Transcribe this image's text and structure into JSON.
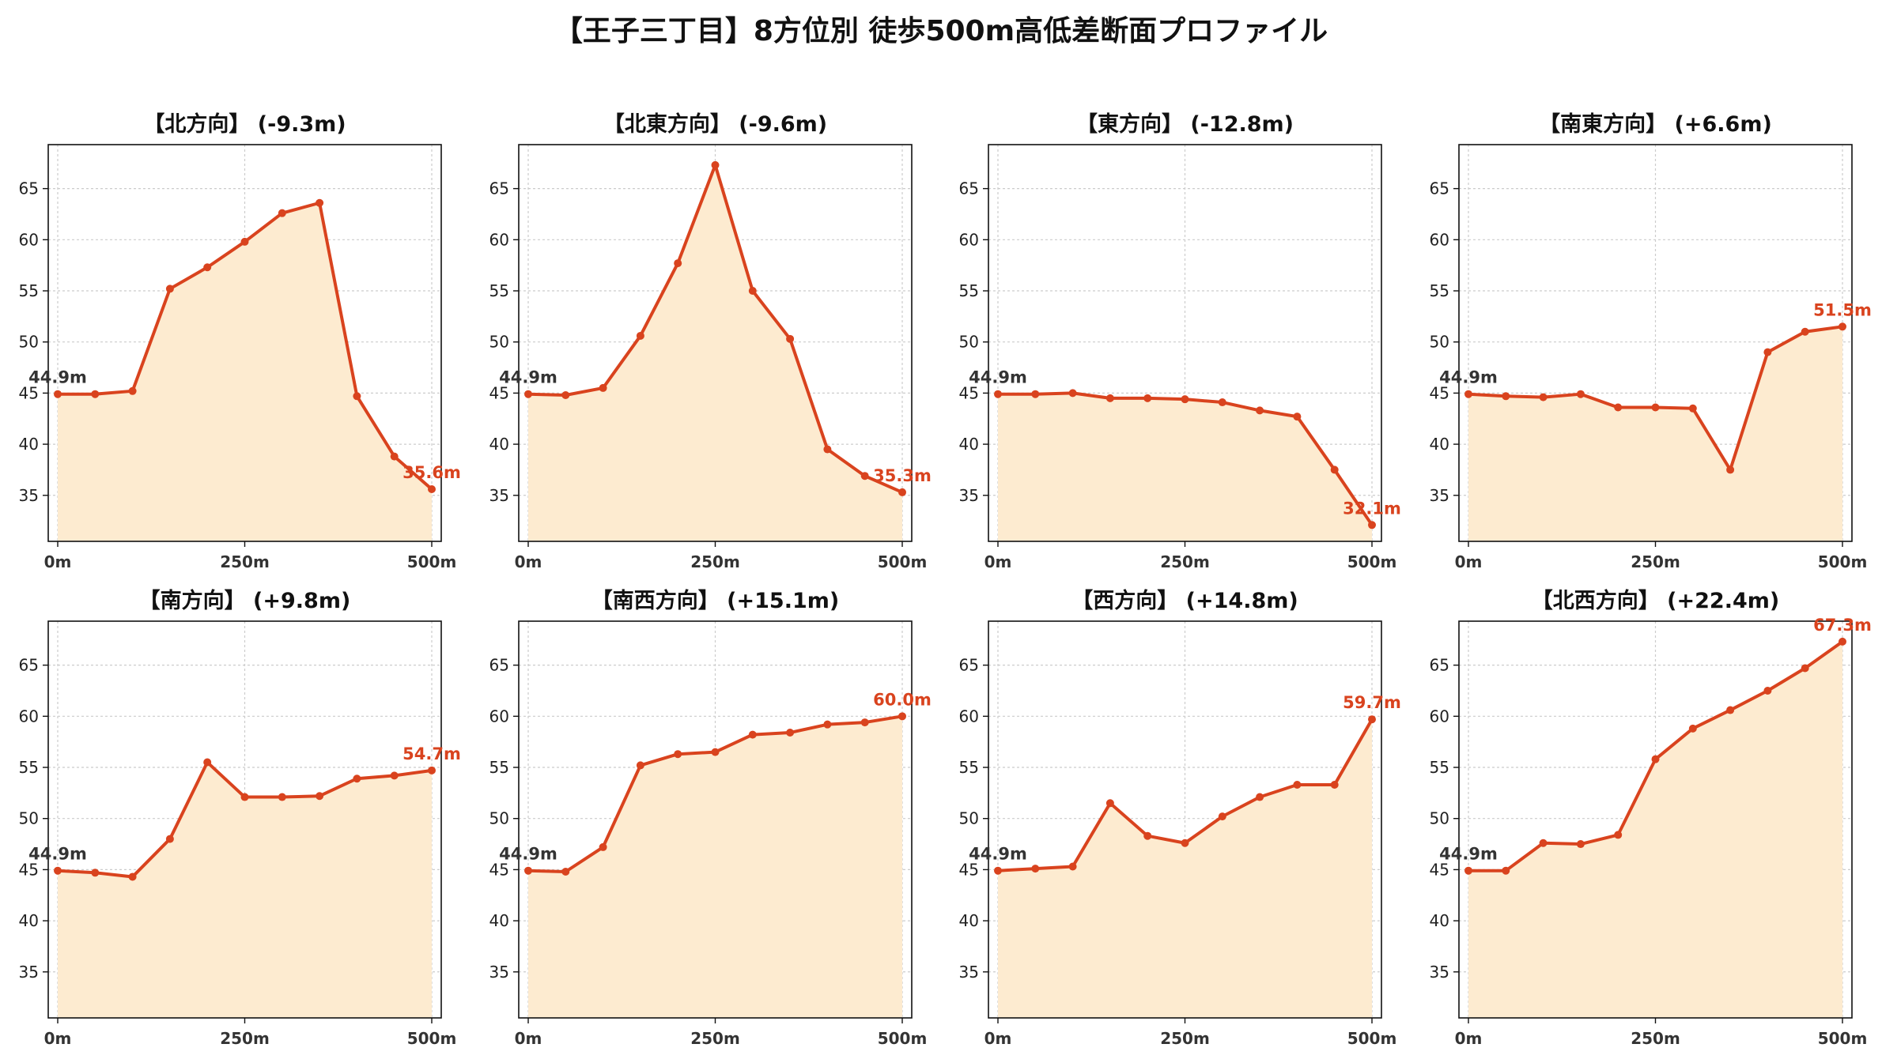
{
  "title": "【王子三丁目】8方位別 徒歩500m高低差断面プロファイル",
  "colors": {
    "line": "#d9431e",
    "fill": "#fdebd0",
    "grid": "#cccccc",
    "start_label": "#333333"
  },
  "chart_data": [
    {
      "type": "area",
      "title": "【北方向】 (-9.3m)",
      "x": [
        0,
        50,
        100,
        150,
        200,
        250,
        300,
        350,
        400,
        450,
        500
      ],
      "values": [
        44.9,
        44.9,
        45.2,
        55.2,
        57.3,
        59.8,
        62.6,
        63.6,
        44.7,
        38.8,
        35.6
      ],
      "xticks": [
        "0m",
        "250m",
        "500m"
      ],
      "xtick_values": [
        0,
        250,
        500
      ],
      "ylim": [
        30.5,
        69.3
      ],
      "yticks": [
        35,
        40,
        45,
        50,
        55,
        60,
        65
      ],
      "start_label": "44.9m",
      "end_label": "35.6m",
      "grid": true
    },
    {
      "type": "area",
      "title": "【北東方向】 (-9.6m)",
      "x": [
        0,
        50,
        100,
        150,
        200,
        250,
        300,
        350,
        400,
        450,
        500
      ],
      "values": [
        44.9,
        44.8,
        45.5,
        50.6,
        57.7,
        67.3,
        55.0,
        50.3,
        39.5,
        36.9,
        35.3
      ],
      "xticks": [
        "0m",
        "250m",
        "500m"
      ],
      "xtick_values": [
        0,
        250,
        500
      ],
      "ylim": [
        30.5,
        69.3
      ],
      "yticks": [
        35,
        40,
        45,
        50,
        55,
        60,
        65
      ],
      "start_label": "44.9m",
      "end_label": "35.3m",
      "grid": true
    },
    {
      "type": "area",
      "title": "【東方向】 (-12.8m)",
      "x": [
        0,
        50,
        100,
        150,
        200,
        250,
        300,
        350,
        400,
        450,
        500
      ],
      "values": [
        44.9,
        44.9,
        45.0,
        44.5,
        44.5,
        44.4,
        44.1,
        43.3,
        42.7,
        37.5,
        32.1
      ],
      "xticks": [
        "0m",
        "250m",
        "500m"
      ],
      "xtick_values": [
        0,
        250,
        500
      ],
      "ylim": [
        30.5,
        69.3
      ],
      "yticks": [
        35,
        40,
        45,
        50,
        55,
        60,
        65
      ],
      "start_label": "44.9m",
      "end_label": "32.1m",
      "grid": true
    },
    {
      "type": "area",
      "title": "【南東方向】 (+6.6m)",
      "x": [
        0,
        50,
        100,
        150,
        200,
        250,
        300,
        350,
        400,
        450,
        500
      ],
      "values": [
        44.9,
        44.7,
        44.6,
        44.9,
        43.6,
        43.6,
        43.5,
        37.5,
        49.0,
        51.0,
        51.5
      ],
      "xticks": [
        "0m",
        "250m",
        "500m"
      ],
      "xtick_values": [
        0,
        250,
        500
      ],
      "ylim": [
        30.5,
        69.3
      ],
      "yticks": [
        35,
        40,
        45,
        50,
        55,
        60,
        65
      ],
      "start_label": "44.9m",
      "end_label": "51.5m",
      "grid": true
    },
    {
      "type": "area",
      "title": "【南方向】 (+9.8m)",
      "x": [
        0,
        50,
        100,
        150,
        200,
        250,
        300,
        350,
        400,
        450,
        500
      ],
      "values": [
        44.9,
        44.7,
        44.3,
        48.0,
        55.5,
        52.1,
        52.1,
        52.2,
        53.9,
        54.2,
        54.7
      ],
      "xticks": [
        "0m",
        "250m",
        "500m"
      ],
      "xtick_values": [
        0,
        250,
        500
      ],
      "ylim": [
        30.5,
        69.3
      ],
      "yticks": [
        35,
        40,
        45,
        50,
        55,
        60,
        65
      ],
      "start_label": "44.9m",
      "end_label": "54.7m",
      "grid": true
    },
    {
      "type": "area",
      "title": "【南西方向】 (+15.1m)",
      "x": [
        0,
        50,
        100,
        150,
        200,
        250,
        300,
        350,
        400,
        450,
        500
      ],
      "values": [
        44.9,
        44.8,
        47.2,
        55.2,
        56.3,
        56.5,
        58.2,
        58.4,
        59.2,
        59.4,
        60.0
      ],
      "xticks": [
        "0m",
        "250m",
        "500m"
      ],
      "xtick_values": [
        0,
        250,
        500
      ],
      "ylim": [
        30.5,
        69.3
      ],
      "yticks": [
        35,
        40,
        45,
        50,
        55,
        60,
        65
      ],
      "start_label": "44.9m",
      "end_label": "60.0m",
      "grid": true
    },
    {
      "type": "area",
      "title": "【西方向】 (+14.8m)",
      "x": [
        0,
        50,
        100,
        150,
        200,
        250,
        300,
        350,
        400,
        450,
        500
      ],
      "values": [
        44.9,
        45.1,
        45.3,
        51.5,
        48.3,
        47.6,
        50.2,
        52.1,
        53.3,
        53.3,
        59.7
      ],
      "xticks": [
        "0m",
        "250m",
        "500m"
      ],
      "xtick_values": [
        0,
        250,
        500
      ],
      "ylim": [
        30.5,
        69.3
      ],
      "yticks": [
        35,
        40,
        45,
        50,
        55,
        60,
        65
      ],
      "start_label": "44.9m",
      "end_label": "59.7m",
      "grid": true
    },
    {
      "type": "area",
      "title": "【北西方向】 (+22.4m)",
      "x": [
        0,
        50,
        100,
        150,
        200,
        250,
        300,
        350,
        400,
        450,
        500
      ],
      "values": [
        44.9,
        44.9,
        47.6,
        47.5,
        48.4,
        55.8,
        58.8,
        60.6,
        62.5,
        64.7,
        67.3
      ],
      "xticks": [
        "0m",
        "250m",
        "500m"
      ],
      "xtick_values": [
        0,
        250,
        500
      ],
      "ylim": [
        30.5,
        69.3
      ],
      "yticks": [
        35,
        40,
        45,
        50,
        55,
        60,
        65
      ],
      "start_label": "44.9m",
      "end_label": "67.3m",
      "grid": true
    }
  ]
}
